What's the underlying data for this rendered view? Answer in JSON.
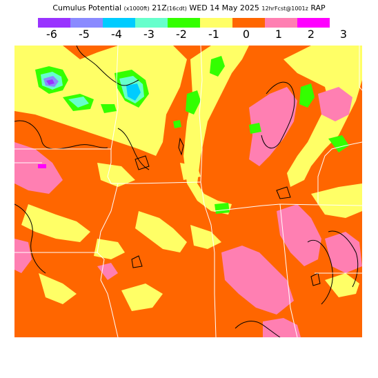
{
  "header": {
    "field_name": "Cumulus Potential",
    "units": "(x1000ft)",
    "valid_time": "21Z",
    "local_time": "(16cdt)",
    "date": "WED 14 May 2025",
    "forecast_info": "12hrFcst@1001z",
    "model": "RAP"
  },
  "legend": {
    "colors": [
      "#9933ff",
      "#8a8aff",
      "#00ccff",
      "#66ffcc",
      "#33ff00",
      "#ffff66",
      "#ff6600",
      "#ff7fb2",
      "#ff00ff"
    ],
    "ticks": [
      "-6",
      "-5",
      "-4",
      "-3",
      "-2",
      "-1",
      "0",
      "1",
      "2",
      "3"
    ]
  }
}
